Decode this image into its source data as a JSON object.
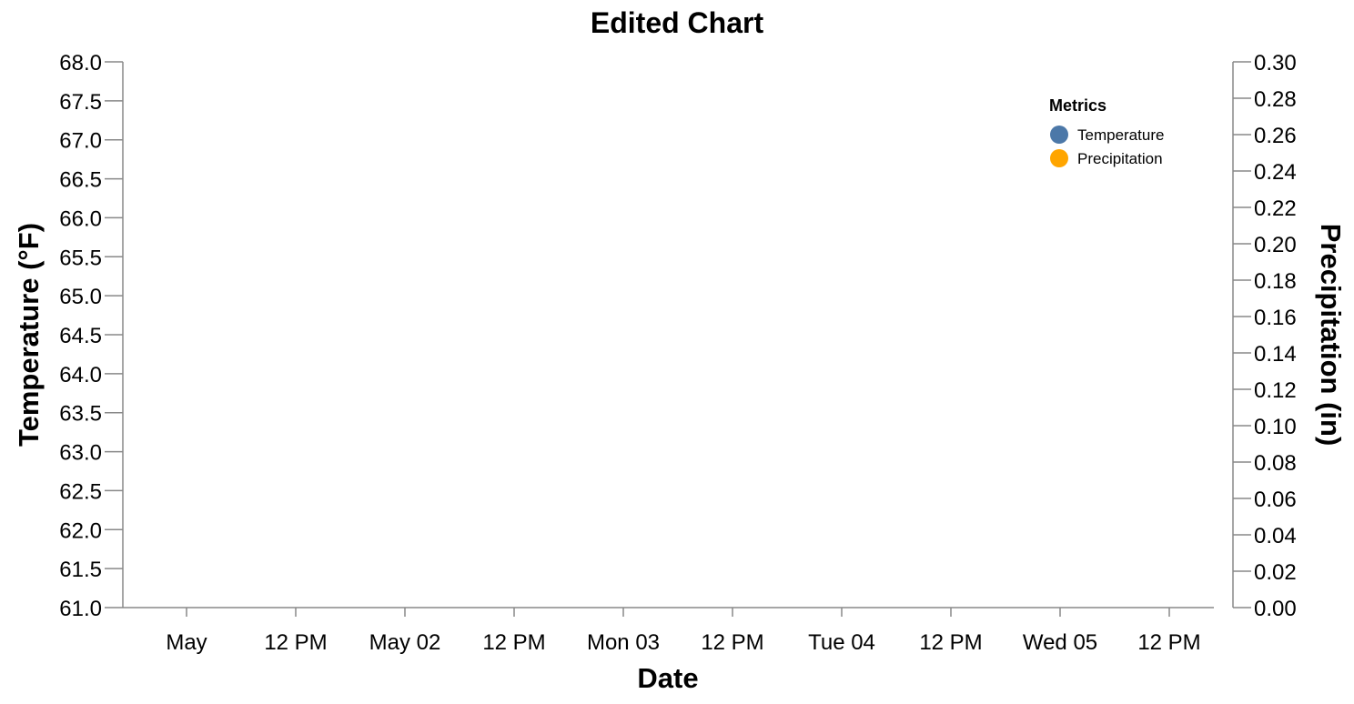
{
  "chart_data": {
    "type": "line",
    "title": "Edited Chart",
    "xlabel": "Date",
    "ylabel_left": "Temperature (°F)",
    "ylabel_right": "Precipitation (in)",
    "x_tick_labels": [
      "May",
      "12 PM",
      "May 02",
      "12 PM",
      "Mon 03",
      "12 PM",
      "Tue 04",
      "12 PM",
      "Wed 05",
      "12 PM"
    ],
    "y_left_range": [
      61,
      68
    ],
    "y_left_step": 0.5,
    "y_right_range": [
      0,
      0.3
    ],
    "y_right_step": 0.02,
    "grid": false,
    "legend": {
      "title": "Metrics",
      "placement": "top-right",
      "items": [
        {
          "label": "Temperature",
          "color": "#4c78a8"
        },
        {
          "label": "Precipitation",
          "color": "#ffa500"
        }
      ]
    },
    "series": []
  }
}
